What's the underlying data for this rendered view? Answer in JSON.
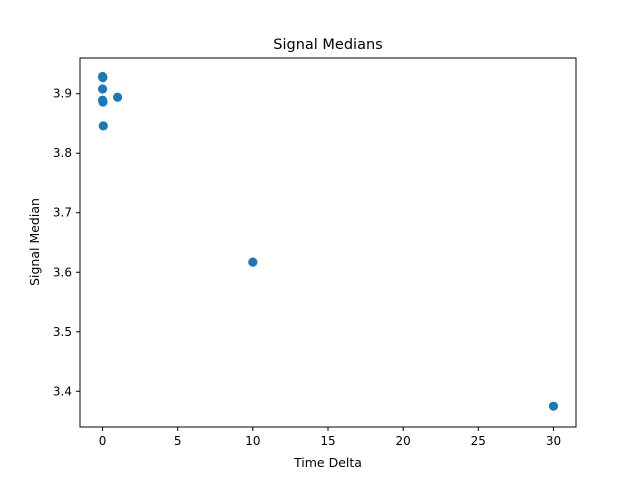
{
  "chart_data": {
    "type": "scatter",
    "title": "Signal Medians",
    "xlabel": "Time Delta",
    "ylabel": "Signal Median",
    "xlim": [
      -1.5,
      31.5
    ],
    "ylim": [
      3.34,
      3.96
    ],
    "xticks": [
      0,
      5,
      10,
      15,
      20,
      25,
      30
    ],
    "yticks": [
      3.4,
      3.5,
      3.6,
      3.7,
      3.8,
      3.9
    ],
    "ytick_labels": [
      "3.4",
      "3.5",
      "3.6",
      "3.7",
      "3.8",
      "3.9"
    ],
    "grid": false,
    "marker_color": "#1f77b4",
    "points": [
      {
        "x": 0.0,
        "y": 3.929
      },
      {
        "x": 0.02,
        "y": 3.927
      },
      {
        "x": 0.0,
        "y": 3.908
      },
      {
        "x": 0.0,
        "y": 3.889
      },
      {
        "x": 0.03,
        "y": 3.886
      },
      {
        "x": 0.05,
        "y": 3.846
      },
      {
        "x": 1.0,
        "y": 3.894
      },
      {
        "x": 10.0,
        "y": 3.617
      },
      {
        "x": 30.0,
        "y": 3.375
      }
    ]
  }
}
